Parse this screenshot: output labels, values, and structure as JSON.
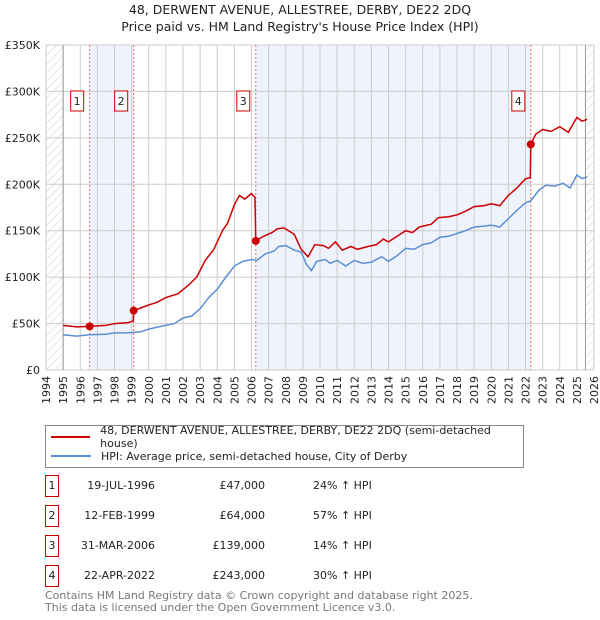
{
  "chart_data": {
    "type": "line",
    "title": "48, DERWENT AVENUE, ALLESTREE, DERBY, DE22 2DQ",
    "subtitle": "Price paid vs. HM Land Registry's House Price Index (HPI)",
    "xlabel": "",
    "ylabel": "",
    "xlim": [
      1994,
      2026
    ],
    "ylim": [
      0,
      350000
    ],
    "x_ticks": [
      "1994",
      "1995",
      "1996",
      "1997",
      "1998",
      "1999",
      "2000",
      "2001",
      "2002",
      "2003",
      "2004",
      "2005",
      "2006",
      "2007",
      "2008",
      "2009",
      "2010",
      "2011",
      "2012",
      "2013",
      "2014",
      "2015",
      "2016",
      "2017",
      "2018",
      "2019",
      "2020",
      "2021",
      "2022",
      "2023",
      "2024",
      "2025",
      "2026"
    ],
    "y_ticks": [
      {
        "v": 0,
        "label": "£0"
      },
      {
        "v": 50000,
        "label": "£50K"
      },
      {
        "v": 100000,
        "label": "£100K"
      },
      {
        "v": 150000,
        "label": "£150K"
      },
      {
        "v": 200000,
        "label": "£200K"
      },
      {
        "v": 250000,
        "label": "£250K"
      },
      {
        "v": 300000,
        "label": "£300K"
      },
      {
        "v": 350000,
        "label": "£350K"
      }
    ],
    "grid": true,
    "legend_placement": "below",
    "series": [
      {
        "name": "48, DERWENT AVENUE, ALLESTREE, DERBY, DE22 2DQ (semi-detached house)",
        "color": "#cc0000",
        "points": [
          [
            1995,
            48000
          ],
          [
            1995.8,
            46500
          ],
          [
            1996.55,
            47000
          ],
          [
            1997.5,
            48000
          ],
          [
            1998,
            50000
          ],
          [
            1998.8,
            51000
          ],
          [
            1999.1,
            53000
          ],
          [
            1999.12,
            64000
          ],
          [
            2000,
            70000
          ],
          [
            2000.5,
            73000
          ],
          [
            2001,
            78000
          ],
          [
            2001.7,
            82000
          ],
          [
            2002.3,
            91000
          ],
          [
            2002.8,
            100000
          ],
          [
            2003.3,
            118000
          ],
          [
            2003.8,
            130000
          ],
          [
            2004.3,
            150000
          ],
          [
            2004.6,
            158000
          ],
          [
            2005,
            178000
          ],
          [
            2005.3,
            188000
          ],
          [
            2005.6,
            184000
          ],
          [
            2006,
            190000
          ],
          [
            2006.2,
            186000
          ],
          [
            2006.25,
            139000
          ],
          [
            2006.7,
            144000
          ],
          [
            2007.2,
            148000
          ],
          [
            2007.5,
            152000
          ],
          [
            2007.9,
            153000
          ],
          [
            2008.5,
            146000
          ],
          [
            2008.9,
            130000
          ],
          [
            2009.3,
            122000
          ],
          [
            2009.7,
            135000
          ],
          [
            2010.2,
            134000
          ],
          [
            2010.5,
            131000
          ],
          [
            2010.9,
            138000
          ],
          [
            2011.3,
            129000
          ],
          [
            2011.8,
            133000
          ],
          [
            2012.2,
            130000
          ],
          [
            2012.8,
            133000
          ],
          [
            2013.3,
            135000
          ],
          [
            2013.7,
            141000
          ],
          [
            2014,
            138000
          ],
          [
            2014.5,
            144000
          ],
          [
            2015,
            150000
          ],
          [
            2015.4,
            148000
          ],
          [
            2015.8,
            154000
          ],
          [
            2016.5,
            157000
          ],
          [
            2016.9,
            164000
          ],
          [
            2017.5,
            165000
          ],
          [
            2018,
            167000
          ],
          [
            2018.5,
            171000
          ],
          [
            2019,
            176000
          ],
          [
            2019.6,
            177000
          ],
          [
            2020,
            179000
          ],
          [
            2020.5,
            177000
          ],
          [
            2021,
            188000
          ],
          [
            2021.5,
            196000
          ],
          [
            2022,
            206000
          ],
          [
            2022.28,
            207000
          ],
          [
            2022.31,
            243000
          ],
          [
            2022.6,
            254000
          ],
          [
            2023,
            259000
          ],
          [
            2023.5,
            257000
          ],
          [
            2024,
            262000
          ],
          [
            2024.5,
            256000
          ],
          [
            2025,
            272000
          ],
          [
            2025.3,
            268000
          ],
          [
            2025.6,
            270000
          ]
        ]
      },
      {
        "name": "HPI: Average price, semi-detached house, City of Derby",
        "color": "#5b8fd4",
        "points": [
          [
            1995,
            38000
          ],
          [
            1995.8,
            36500
          ],
          [
            1996.5,
            38000
          ],
          [
            1997.5,
            38500
          ],
          [
            1998,
            40000
          ],
          [
            1998.7,
            40000
          ],
          [
            1999.5,
            41000
          ],
          [
            2000,
            44000
          ],
          [
            2000.7,
            47000
          ],
          [
            2001.5,
            50000
          ],
          [
            2002,
            56000
          ],
          [
            2002.5,
            58000
          ],
          [
            2003,
            66000
          ],
          [
            2003.5,
            78000
          ],
          [
            2004,
            87000
          ],
          [
            2004.5,
            100000
          ],
          [
            2005,
            112000
          ],
          [
            2005.5,
            117000
          ],
          [
            2006,
            119000
          ],
          [
            2006.3,
            118000
          ],
          [
            2006.8,
            125000
          ],
          [
            2007.3,
            128000
          ],
          [
            2007.6,
            133000
          ],
          [
            2008,
            134000
          ],
          [
            2008.5,
            129000
          ],
          [
            2008.9,
            127000
          ],
          [
            2009.2,
            114000
          ],
          [
            2009.5,
            107000
          ],
          [
            2009.8,
            117000
          ],
          [
            2010.3,
            119000
          ],
          [
            2010.6,
            115000
          ],
          [
            2011,
            118000
          ],
          [
            2011.5,
            112000
          ],
          [
            2012,
            118000
          ],
          [
            2012.5,
            115000
          ],
          [
            2013,
            116000
          ],
          [
            2013.6,
            122000
          ],
          [
            2014,
            117000
          ],
          [
            2014.5,
            123000
          ],
          [
            2015,
            131000
          ],
          [
            2015.5,
            130000
          ],
          [
            2016,
            135000
          ],
          [
            2016.5,
            137000
          ],
          [
            2017,
            143000
          ],
          [
            2017.5,
            144000
          ],
          [
            2018,
            147000
          ],
          [
            2018.5,
            150000
          ],
          [
            2019,
            154000
          ],
          [
            2019.6,
            155000
          ],
          [
            2020,
            156000
          ],
          [
            2020.5,
            154000
          ],
          [
            2021,
            163000
          ],
          [
            2021.5,
            172000
          ],
          [
            2022,
            180000
          ],
          [
            2022.3,
            182000
          ],
          [
            2022.8,
            194000
          ],
          [
            2023.2,
            199000
          ],
          [
            2023.7,
            198000
          ],
          [
            2024.2,
            201000
          ],
          [
            2024.6,
            196000
          ],
          [
            2025,
            210000
          ],
          [
            2025.3,
            206000
          ],
          [
            2025.6,
            208000
          ]
        ]
      }
    ],
    "sales": [
      {
        "label": "1",
        "x": 1996.55,
        "price": 47000
      },
      {
        "label": "2",
        "x": 1999.12,
        "price": 64000
      },
      {
        "label": "3",
        "x": 2006.25,
        "price": 139000
      },
      {
        "label": "4",
        "x": 2022.31,
        "price": 243000
      }
    ],
    "shaded_ranges": [
      [
        1996.55,
        1999.12
      ],
      [
        2006.25,
        2022.31
      ]
    ],
    "hatched_ranges": [
      [
        1994,
        1995
      ],
      [
        2025.5,
        2026
      ]
    ]
  },
  "title": "48, DERWENT AVENUE, ALLESTREE, DERBY, DE22 2DQ",
  "subtitle": "Price paid vs. HM Land Registry's House Price Index (HPI)",
  "legend": {
    "red": "48, DERWENT AVENUE, ALLESTREE, DERBY, DE22 2DQ (semi-detached house)",
    "blue": "HPI: Average price, semi-detached house, City of Derby"
  },
  "table": [
    {
      "num": "1",
      "date": "19-JUL-1996",
      "price": "£47,000",
      "pct": "24% ↑ HPI"
    },
    {
      "num": "2",
      "date": "12-FEB-1999",
      "price": "£64,000",
      "pct": "57% ↑ HPI"
    },
    {
      "num": "3",
      "date": "31-MAR-2006",
      "price": "£139,000",
      "pct": "14% ↑ HPI"
    },
    {
      "num": "4",
      "date": "22-APR-2022",
      "price": "£243,000",
      "pct": "30% ↑ HPI"
    }
  ],
  "footer": {
    "line1": "Contains HM Land Registry data © Crown copyright and database right 2025.",
    "line2": "This data is licensed under the Open Government Licence v3.0."
  }
}
